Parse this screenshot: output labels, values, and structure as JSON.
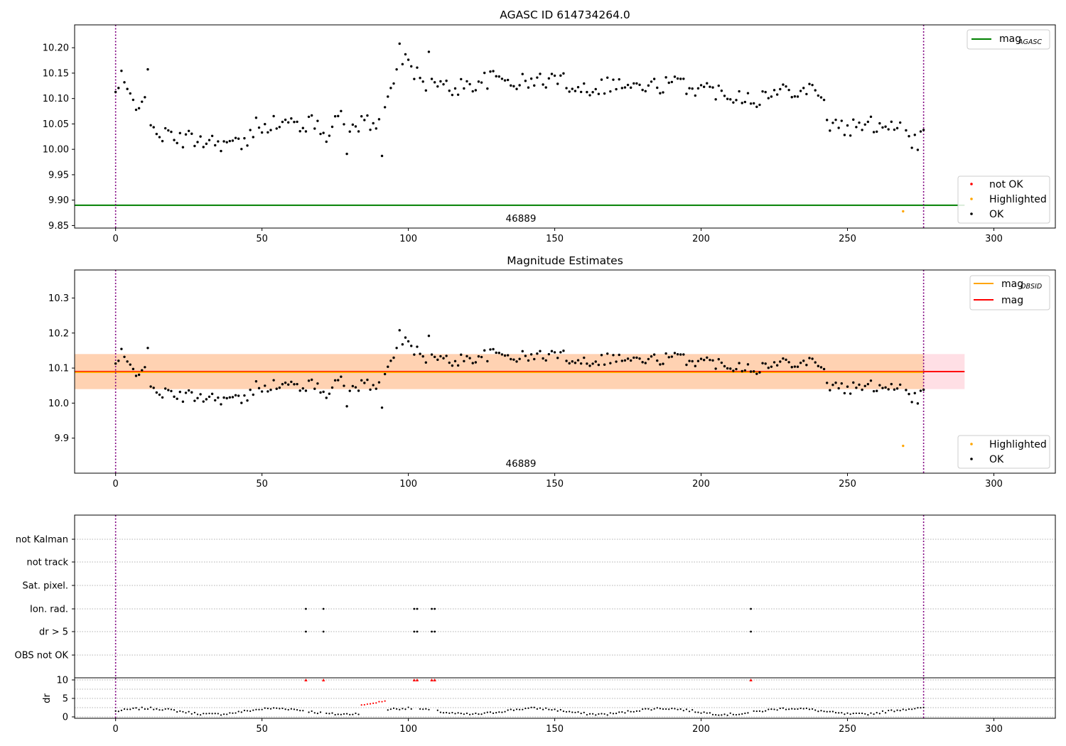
{
  "chart_data": [
    {
      "type": "scatter",
      "title": "AGASC ID 614734264.0",
      "xlim": [
        -14,
        321
      ],
      "ylim": [
        9.845,
        10.245
      ],
      "xticks": [
        0,
        50,
        100,
        150,
        200,
        250,
        300
      ],
      "yticks": [
        9.85,
        9.9,
        9.95,
        10.0,
        10.05,
        10.1,
        10.15,
        10.2
      ],
      "ytick_labels": [
        "9.85",
        "9.90",
        "9.95",
        "10.00",
        "10.05",
        "10.10",
        "10.15",
        "10.20"
      ],
      "vlines": [
        0,
        276
      ],
      "mag_agasc": 9.89,
      "annotation": {
        "text": "46889",
        "x": 138,
        "y": 9.86
      },
      "legend_lines": [
        {
          "label": "mag",
          "sub": "AGASC",
          "color": "#008000"
        }
      ],
      "legend_points": [
        {
          "label": "not OK",
          "color": "#ff0000"
        },
        {
          "label": "Highlighted",
          "color": "#ffa500"
        },
        {
          "label": "OK",
          "color": "#000000"
        }
      ],
      "highlighted": [
        [
          269,
          9.878
        ]
      ]
    },
    {
      "type": "scatter",
      "title": "Magnitude Estimates",
      "xlim": [
        -14,
        321
      ],
      "ylim": [
        9.8,
        10.38
      ],
      "xticks": [
        0,
        50,
        100,
        150,
        200,
        250,
        300
      ],
      "yticks": [
        9.9,
        10.0,
        10.1,
        10.2,
        10.3
      ],
      "ytick_labels": [
        "9.9",
        "10.0",
        "10.1",
        "10.2",
        "10.3"
      ],
      "vlines": [
        0,
        276
      ],
      "mag": 10.09,
      "mag_band": [
        10.04,
        10.14
      ],
      "mag_obsid": 10.088,
      "obsid_band": [
        10.04,
        10.14
      ],
      "band_x": [
        -14,
        290
      ],
      "obsid_x": [
        0,
        276
      ],
      "annotation": {
        "text": "46889",
        "x": 138,
        "y": 9.832
      },
      "legend_lines": [
        {
          "label": "mag",
          "sub": "OBSID",
          "color": "#ffa500"
        },
        {
          "label": "mag",
          "sub": "",
          "color": "#ff0000"
        }
      ],
      "legend_points": [
        {
          "label": "Highlighted",
          "color": "#ffa500"
        },
        {
          "label": "OK",
          "color": "#000000"
        }
      ],
      "highlighted": [
        [
          269,
          9.878
        ]
      ]
    },
    {
      "type": "scatter",
      "xlim": [
        -14,
        321
      ],
      "vlines": [
        0,
        276
      ],
      "flag_rows": [
        "not Kalman",
        "not track",
        "Sat. pixel.",
        "Ion. rad.",
        "dr > 5",
        "OBS not OK"
      ],
      "flags": {
        "Ion. rad.": [
          65,
          71,
          102,
          103,
          108,
          109,
          217
        ],
        "dr > 5": [
          65,
          71,
          102,
          103,
          108,
          109,
          217
        ]
      },
      "dr_ylabel": "dr",
      "dr_yticks": [
        0,
        5,
        10
      ],
      "dr_clipped": [
        65,
        71,
        102,
        103,
        108,
        109,
        217
      ]
    }
  ],
  "colors": {
    "ok": "#000000",
    "not_ok": "#ff0000",
    "highlighted": "#ffa500",
    "agasc": "#008000",
    "vline": "#800080"
  }
}
